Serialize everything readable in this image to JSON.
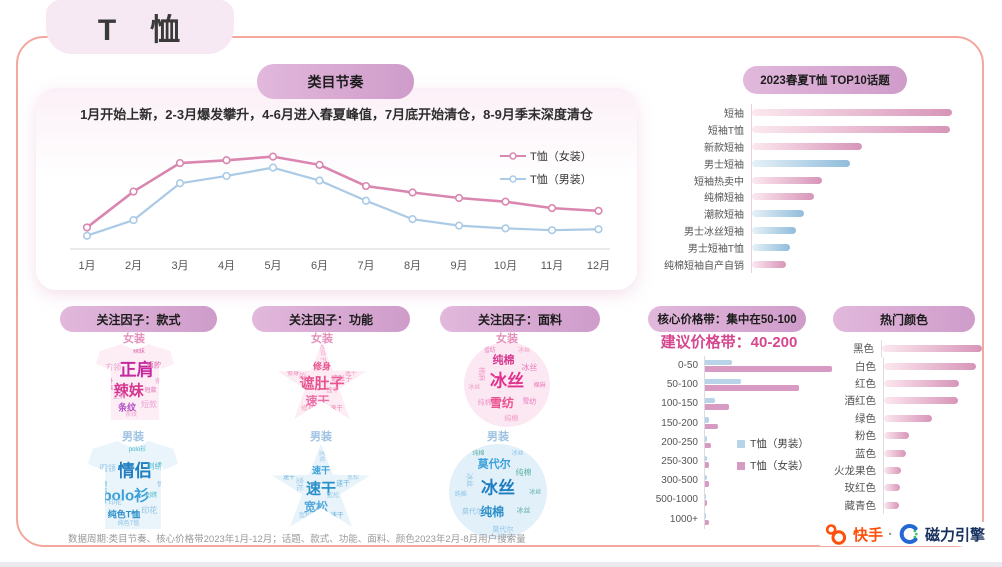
{
  "title": "T　恤",
  "chart_data": [
    {
      "id": "category-rhythm",
      "type": "line",
      "title": "类目节奏",
      "annotation": "1月开始上新，2-3月爆发攀升，4-6月进入春夏峰值，7月底开始清仓，8-9月季末深度清仓",
      "categories": [
        "1月",
        "2月",
        "3月",
        "4月",
        "5月",
        "6月",
        "7月",
        "8月",
        "9月",
        "10月",
        "11月",
        "12月"
      ],
      "series": [
        {
          "name": "T恤（女装）",
          "color": "#d987b0",
          "values": [
            18,
            57,
            88,
            91,
            95,
            86,
            63,
            56,
            50,
            46,
            39,
            36
          ]
        },
        {
          "name": "T恤（男装）",
          "color": "#aacae6",
          "values": [
            9,
            26,
            66,
            74,
            83,
            69,
            47,
            27,
            20,
            17,
            15,
            16
          ]
        }
      ],
      "ylim": [
        0,
        100
      ],
      "legend_position": "right",
      "x_axis_line": true
    },
    {
      "id": "top10-topics",
      "type": "bar",
      "orientation": "horizontal",
      "title": "2023春夏T恤 TOP10话题",
      "items": [
        {
          "label": "短袖",
          "value": 100,
          "palette": "pink"
        },
        {
          "label": "短袖T恤",
          "value": 99,
          "palette": "pink"
        },
        {
          "label": "新款短袖",
          "value": 55,
          "palette": "pink"
        },
        {
          "label": "男士短袖",
          "value": 49,
          "palette": "blue"
        },
        {
          "label": "短袖热卖中",
          "value": 35,
          "palette": "pink"
        },
        {
          "label": "纯棉短袖",
          "value": 31,
          "palette": "pink"
        },
        {
          "label": "潮款短袖",
          "value": 26,
          "palette": "blue"
        },
        {
          "label": "男士冰丝短袖",
          "value": 22,
          "palette": "blue"
        },
        {
          "label": "男士短袖T恤",
          "value": 19,
          "palette": "blue"
        },
        {
          "label": "纯棉短袖自产自销",
          "value": 17,
          "palette": "pink"
        }
      ],
      "xlim": [
        0,
        100
      ]
    },
    {
      "id": "price-bands",
      "type": "bar",
      "orientation": "horizontal",
      "title": "核心价格带：集中在50-100",
      "subtitle": "建议价格带：40-200",
      "categories": [
        "0-50",
        "50-100",
        "100-150",
        "150-200",
        "200-250",
        "250-300",
        "300-500",
        "500-1000",
        "1000+"
      ],
      "series": [
        {
          "name": "T恤（男装）",
          "palette": "blue",
          "color": "#b9d3e8",
          "values": [
            21,
            28,
            8,
            3,
            1.5,
            1.5,
            1.5,
            1,
            1
          ]
        },
        {
          "name": "T恤（女装）",
          "palette": "pink",
          "color": "#d79ac2",
          "values": [
            100,
            74,
            19,
            10,
            4.5,
            3.5,
            3.5,
            1.5,
            3
          ]
        }
      ],
      "xlim": [
        0,
        100
      ]
    },
    {
      "id": "hot-colors",
      "type": "bar",
      "orientation": "horizontal",
      "title": "热门颜色",
      "items": [
        {
          "label": "黑色",
          "value": 100
        },
        {
          "label": "白色",
          "value": 92
        },
        {
          "label": "红色",
          "value": 75
        },
        {
          "label": "酒红色",
          "value": 74
        },
        {
          "label": "绿色",
          "value": 48
        },
        {
          "label": "粉色",
          "value": 25
        },
        {
          "label": "蓝色",
          "value": 22
        },
        {
          "label": "火龙果色",
          "value": 17
        },
        {
          "label": "玫红色",
          "value": 16
        },
        {
          "label": "藏青色",
          "value": 15
        }
      ],
      "xlim": [
        0,
        100
      ]
    }
  ],
  "factors": [
    {
      "header": "关注因子：款式",
      "female": {
        "label": "女装",
        "shape": "tshirt",
        "tint": "#fdeef6",
        "palette": [
          "#c4289e",
          "#d6368f",
          "#b44fc4",
          "#e06ab0",
          "#e9a0cc"
        ],
        "words": [
          "正肩",
          "辣妹",
          "条纹",
          "方领",
          "短款",
          "短款",
          "方领",
          "条纹",
          "辣妹",
          "正肩",
          "短款",
          "条纹"
        ]
      },
      "male": {
        "label": "男装",
        "shape": "tshirt",
        "tint": "#eaf4fb",
        "palette": [
          "#1f7ec2",
          "#3aa0d8",
          "#2b8fc9",
          "#49b8c8",
          "#8ec4e4"
        ],
        "words": [
          "情侣",
          "polo衫",
          "纯色T恤",
          "圆领",
          "刺绣",
          "印花",
          "圆领",
          "情侣",
          "polo衫",
          "印花",
          "刺绣",
          "纯色T恤"
        ]
      }
    },
    {
      "header": "关注因子：功能",
      "female": {
        "label": "女装",
        "shape": "star",
        "tint": "#fdecf4",
        "palette": [
          "#e8538f",
          "#ec6fa6",
          "#e8538f",
          "#eb86b4",
          "#f0a0c4"
        ],
        "words": [
          "遮肚子",
          "速干",
          "修身",
          "速干",
          "遮肚子",
          "修身",
          "速干",
          "遮肚子",
          "修身",
          "速干",
          "遮肚子",
          "速干"
        ]
      },
      "male": {
        "label": "男装",
        "shape": "star",
        "tint": "#e8f3fa",
        "palette": [
          "#2b8fc9",
          "#56aadb",
          "#3aa0d8",
          "#6bb4de",
          "#9ccde8"
        ],
        "words": [
          "速干",
          "宽松",
          "速干",
          "宽松",
          "速干",
          "宽松",
          "速干",
          "宽松",
          "速干",
          "宽松",
          "速干",
          "宽松"
        ]
      }
    },
    {
      "header": "关注因子：面料",
      "female": {
        "label": "女装",
        "shape": "circle",
        "tint": "#fce8f2",
        "palette": [
          "#e0318f",
          "#e8538f",
          "#d6368f",
          "#e878b8",
          "#ef9ac6"
        ],
        "words": [
          "冰丝",
          "雪纺",
          "纯棉",
          "棉麻",
          "冰丝",
          "纯棉",
          "雪纺",
          "冰丝",
          "棉麻",
          "纯棉",
          "雪纺",
          "冰丝"
        ]
      },
      "male": {
        "label": "男装",
        "shape": "circle",
        "tint": "#e2f0fa",
        "palette": [
          "#1f7ec2",
          "#2b8fc9",
          "#3aa0d8",
          "#5fb0a8",
          "#8ec4e4"
        ],
        "words": [
          "冰丝",
          "纯棉",
          "莫代尔",
          "冰丝",
          "纯棉",
          "莫代尔",
          "冰丝",
          "纯棉",
          "冰丝",
          "莫代尔",
          "纯棉",
          "冰丝"
        ]
      }
    }
  ],
  "footer": {
    "note": "数据周期:类目节奏、核心价格带2023年1月-12月；话题、款式、功能、面料、颜色2023年2月-8月用户搜索量",
    "brand": {
      "kuaishou": "快手",
      "dot": "·",
      "engine": "磁力引擎"
    }
  }
}
